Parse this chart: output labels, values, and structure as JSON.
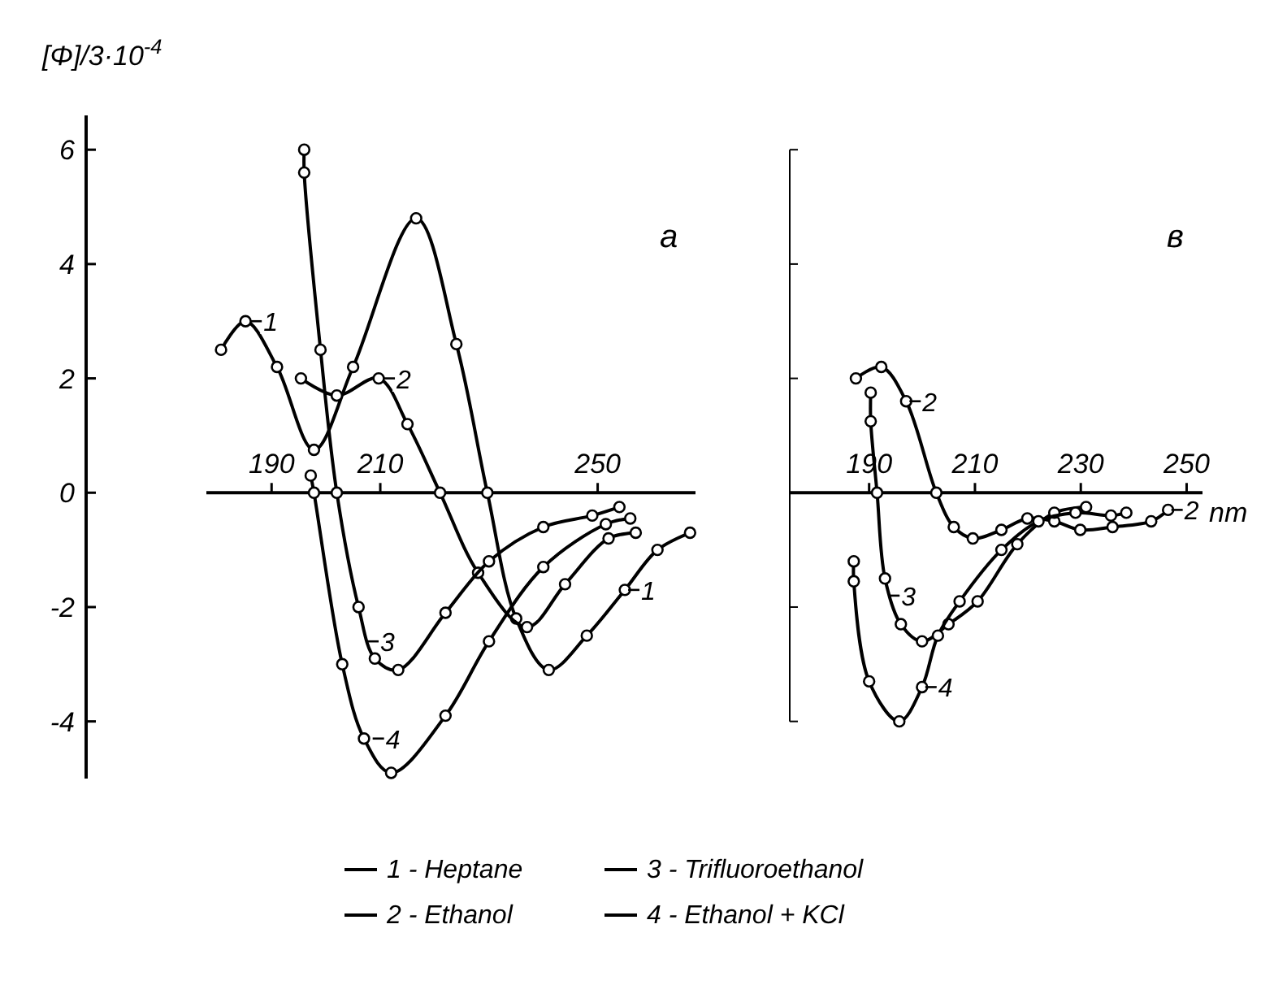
{
  "chart_data": [
    {
      "type": "line",
      "ylabel": "[Φ]/3·10$^{-4}$",
      "xlim": [
        178,
        268
      ],
      "xticks": [
        190,
        210,
        250
      ],
      "ylim": [
        -5,
        6.6
      ],
      "yticks": [
        -4,
        -2,
        0,
        2,
        4,
        6
      ],
      "marker": "circle",
      "legend": "bottom",
      "annotations": [
        "a",
        {
          "text": "1",
          "x": 185.5,
          "y": 3.0
        },
        {
          "text": "2",
          "x": 210,
          "y": 2.0
        },
        {
          "text": "3",
          "x": 207,
          "y": -2.6
        },
        {
          "text": "4",
          "x": 208,
          "y": -4.3
        },
        {
          "text": "1",
          "x": 255,
          "y": -1.7
        }
      ],
      "series": [
        {
          "name": "1 - Heptane",
          "color": "#000000",
          "x": [
            180.7,
            185.2,
            191,
            197.8,
            205,
            216.6,
            224,
            229.7,
            235,
            241,
            248,
            255,
            261,
            267
          ],
          "values": [
            2.5,
            3.0,
            2.2,
            0.75,
            2.2,
            4.8,
            2.6,
            0,
            -2.2,
            -3.1,
            -2.5,
            -1.7,
            -1.0,
            -0.7
          ]
        },
        {
          "name": "2 - Ethanol",
          "color": "#000000",
          "x": [
            195.4,
            202,
            209.7,
            215,
            221,
            228,
            237,
            244,
            252,
            257
          ],
          "values": [
            2.0,
            1.7,
            2.0,
            1.2,
            0,
            -1.4,
            -2.35,
            -1.6,
            -0.8,
            -0.7
          ]
        },
        {
          "name": "3 - Trifluoroethanol",
          "color": "#000000",
          "x": [
            196,
            196,
            199,
            202,
            206,
            209,
            213.3,
            222,
            230,
            240,
            249,
            254
          ],
          "values": [
            6.0,
            5.6,
            2.5,
            0,
            -2.0,
            -2.9,
            -3.1,
            -2.1,
            -1.2,
            -0.6,
            -0.4,
            -0.25
          ]
        },
        {
          "name": "4 - Ethanol + KCl",
          "color": "#000000",
          "x": [
            197.2,
            197.8,
            203,
            207,
            212,
            222,
            230,
            240,
            251.5,
            256
          ],
          "values": [
            0.3,
            0,
            -3.0,
            -4.3,
            -4.9,
            -3.9,
            -2.6,
            -1.3,
            -0.55,
            -0.45
          ]
        }
      ]
    },
    {
      "type": "line",
      "xlabel": "nm",
      "xlim": [
        175,
        253
      ],
      "xticks": [
        190,
        210,
        230,
        250
      ],
      "ylim": [
        -4,
        6
      ],
      "yticks": [
        -4,
        -2,
        0,
        2,
        4,
        6
      ],
      "tick_labels": "x",
      "marker": "circle",
      "annotations": [
        "в",
        {
          "text": "2",
          "x": 197,
          "y": 1.6
        },
        {
          "text": "3",
          "x": 193,
          "y": -1.8
        },
        {
          "text": "4",
          "x": 200,
          "y": -3.4
        },
        {
          "text": "2",
          "x": 246.5,
          "y": -0.3
        }
      ],
      "series": [
        {
          "color": "#000000",
          "x": [
            187.5,
            192.3,
            197,
            202.7,
            206,
            209.6,
            215,
            219.9,
            225,
            229.9,
            236,
            243.3,
            246.5
          ],
          "values": [
            2.0,
            2.2,
            1.6,
            0,
            -0.6,
            -0.8,
            -0.65,
            -0.45,
            -0.5,
            -0.65,
            -0.6,
            -0.5,
            -0.3
          ]
        },
        {
          "color": "#000000",
          "x": [
            190.3,
            190.3,
            191.5,
            193,
            196,
            200,
            205,
            210.5,
            218,
            225,
            231
          ],
          "values": [
            1.75,
            1.25,
            0,
            -1.5,
            -2.3,
            -2.6,
            -2.3,
            -1.9,
            -0.9,
            -0.35,
            -0.25
          ]
        },
        {
          "color": "#000000",
          "x": [
            187.1,
            187.1,
            190,
            195.7,
            200,
            203,
            207.1,
            215,
            222,
            229,
            235.7,
            238.6
          ],
          "values": [
            -1.2,
            -1.55,
            -3.3,
            -4.0,
            -3.4,
            -2.5,
            -1.9,
            -1.0,
            -0.5,
            -0.35,
            -0.4,
            -0.35
          ]
        }
      ]
    }
  ]
}
